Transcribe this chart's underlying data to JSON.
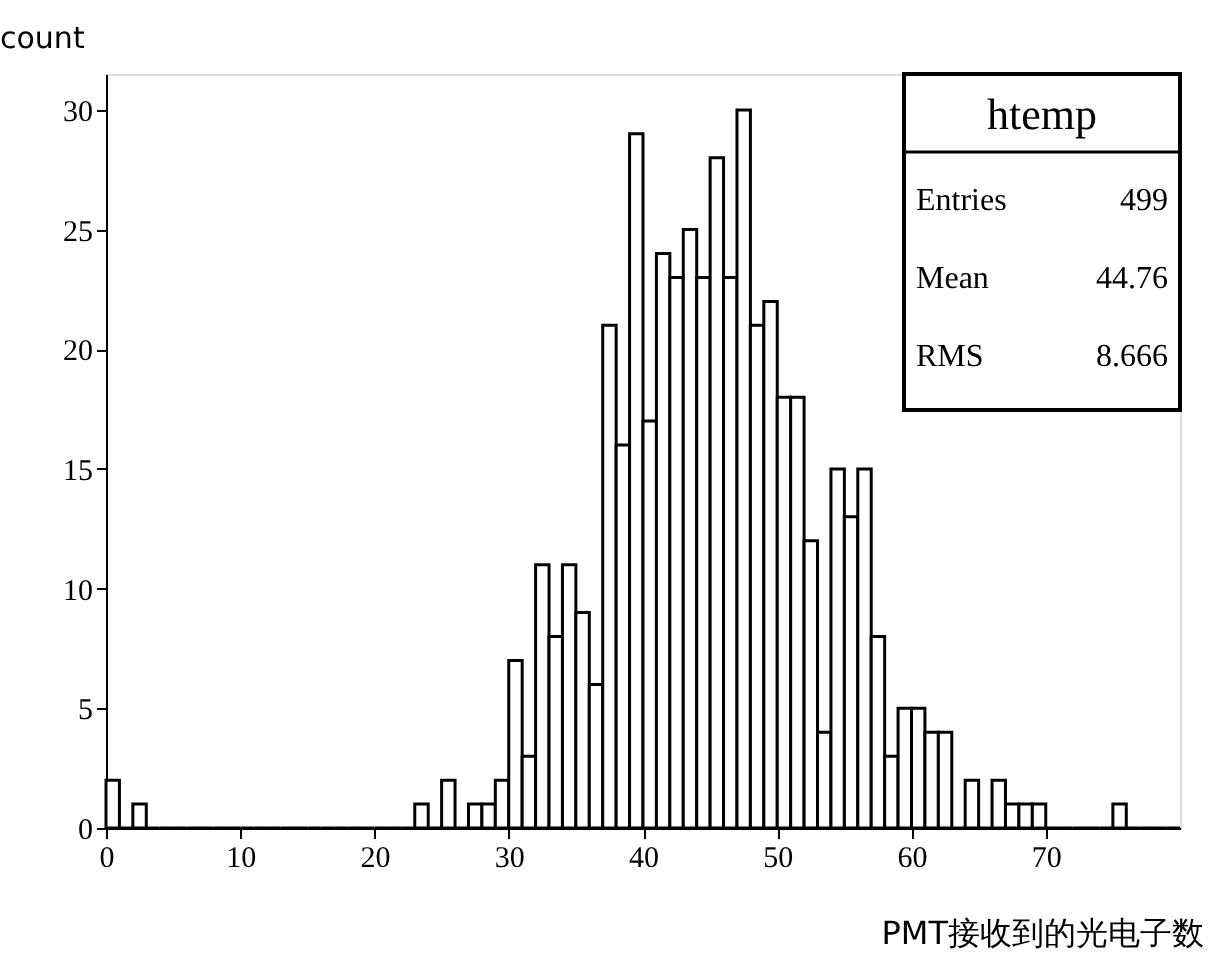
{
  "chart_data": {
    "type": "histogram",
    "xlabel": "PMT接收到的光电子数",
    "ylabel": "count",
    "bins": [
      0,
      1,
      2,
      3,
      4,
      5,
      6,
      7,
      8,
      9,
      10,
      11,
      12,
      13,
      14,
      15,
      16,
      17,
      18,
      19,
      20,
      21,
      22,
      23,
      24,
      25,
      26,
      27,
      28,
      29,
      30,
      31,
      32,
      33,
      34,
      35,
      36,
      37,
      38,
      39,
      40,
      41,
      42,
      43,
      44,
      45,
      46,
      47,
      48,
      49,
      50,
      51,
      52,
      53,
      54,
      55,
      56,
      57,
      58,
      59,
      60,
      61,
      62,
      63,
      64,
      65,
      66,
      67,
      68,
      69,
      70,
      71,
      72,
      73,
      74,
      75,
      76,
      77,
      78,
      79,
      80
    ],
    "values": [
      2,
      0,
      1,
      0,
      0,
      0,
      0,
      0,
      0,
      0,
      0,
      0,
      0,
      0,
      0,
      0,
      0,
      0,
      0,
      0,
      0,
      0,
      0,
      1,
      0,
      2,
      0,
      1,
      1,
      2,
      7,
      3,
      11,
      8,
      11,
      9,
      6,
      21,
      16,
      29,
      17,
      24,
      23,
      25,
      23,
      28,
      23,
      30,
      21,
      22,
      18,
      18,
      12,
      4,
      15,
      13,
      15,
      8,
      3,
      5,
      5,
      4,
      4,
      0,
      2,
      0,
      2,
      1,
      1,
      1,
      0,
      0,
      0,
      0,
      0,
      1,
      0,
      0,
      0,
      0
    ],
    "color": "#000000",
    "xlim": [
      0,
      80
    ],
    "xticks": [
      0,
      10,
      20,
      30,
      40,
      50,
      60,
      70
    ],
    "ylim": [
      0,
      31.5
    ],
    "yticks": [
      0,
      5,
      10,
      15,
      20,
      25,
      30
    ],
    "grid": false,
    "annotations": [
      "htemp",
      "Entries 499",
      "Mean 44.76",
      "RMS 8.666"
    ]
  }
}
